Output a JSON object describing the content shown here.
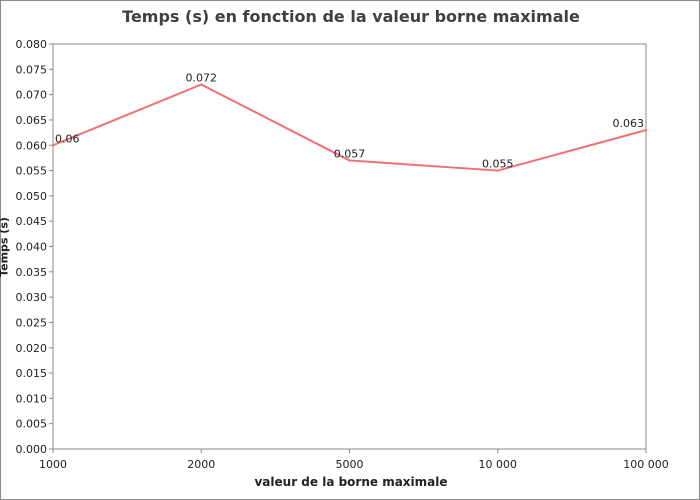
{
  "chart_data": {
    "type": "line",
    "title": "Temps (s) en fonction de la valeur borne maximale",
    "xlabel": "valeur de la borne maximale",
    "ylabel": "Temps (s)",
    "categories": [
      "1000",
      "2000",
      "5000",
      "10 000",
      "100 000"
    ],
    "series": [
      {
        "values": [
          0.06,
          0.072,
          0.057,
          0.055,
          0.063
        ],
        "data_labels": [
          "0.06",
          "0.072",
          "0.057",
          "0.055",
          "0.063"
        ],
        "color": "#f07070"
      }
    ],
    "ylim": [
      0,
      0.08
    ],
    "yticks": [
      0.0,
      0.005,
      0.01,
      0.015,
      0.02,
      0.025,
      0.03,
      0.035,
      0.04,
      0.045,
      0.05,
      0.055,
      0.06,
      0.065,
      0.07,
      0.075,
      0.08
    ],
    "ytick_labels": [
      "0.000",
      "0.005",
      "0.010",
      "0.015",
      "0.020",
      "0.025",
      "0.030",
      "0.035",
      "0.040",
      "0.045",
      "0.050",
      "0.055",
      "0.060",
      "0.065",
      "0.070",
      "0.075",
      "0.080"
    ],
    "grid": false,
    "legend": "none"
  }
}
